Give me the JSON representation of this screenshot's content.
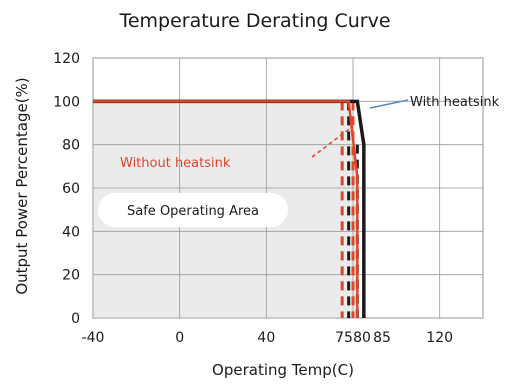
{
  "chart_data": {
    "type": "line",
    "title": "Temperature Derating Curve",
    "xlabel": "Operating Temp(C)",
    "ylabel": "Output Power Percentage(%)",
    "xlim": [
      -40,
      140
    ],
    "ylim": [
      0,
      120
    ],
    "xticks": [
      -40,
      0,
      40,
      75,
      80,
      85,
      120
    ],
    "xtick_labels": [
      "-40",
      "0",
      "40",
      "75",
      "80",
      "85",
      "120"
    ],
    "yticks": [
      0,
      20,
      40,
      60,
      80,
      100,
      120
    ],
    "ytick_labels": [
      "0",
      "20",
      "40",
      "60",
      "80",
      "100",
      "120"
    ],
    "grid": true,
    "series": [
      {
        "name": "With heatsink",
        "color": "#1a1a1a",
        "points": [
          [
            -40,
            100
          ],
          [
            82,
            100
          ],
          [
            85,
            80
          ],
          [
            85,
            0
          ]
        ]
      },
      {
        "name": "Without heatsink",
        "color": "#e0452b",
        "points": [
          [
            -40,
            100
          ],
          [
            78,
            100
          ],
          [
            82,
            65
          ],
          [
            82,
            0
          ]
        ]
      }
    ],
    "dashed_guides": [
      {
        "x": 75,
        "y_top": 100,
        "color": "#e0452b"
      },
      {
        "x": 78,
        "y_top": 100,
        "color": "#1a1a1a"
      },
      {
        "x": 80,
        "y_top": 100,
        "color": "#e0452b"
      },
      {
        "x": 82,
        "y_top": 80,
        "color": "#1a1a1a"
      }
    ],
    "annotations": {
      "with_heatsink": {
        "text": "With heatsink",
        "color": "#1a1a1a"
      },
      "without_heatsink": {
        "text": "Without  heatsink",
        "color": "#e0452b"
      },
      "safe_area": {
        "text": "Safe Operating Area",
        "color": "#1a1a1a"
      }
    },
    "shaded_region": {
      "description_color": "#ebebeb"
    }
  }
}
